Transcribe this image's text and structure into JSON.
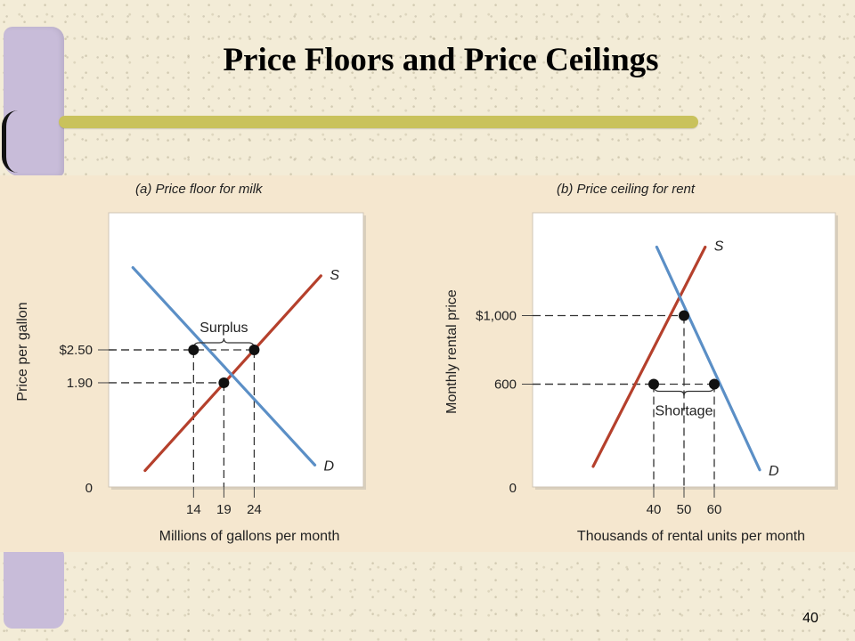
{
  "slide": {
    "title": "Price Floors and Price Ceilings",
    "page_number": "40"
  },
  "colors": {
    "background": "#f3ecd7",
    "figure_background": "#f5e7cf",
    "plot_background": "#ffffff",
    "accent_bar": "#c9c25c",
    "sidebar": "#c8bcd9",
    "supply_line": "#b5402c",
    "demand_line": "#5b8fc6"
  },
  "chart_data": [
    {
      "type": "line",
      "title": "(a) Price floor for milk",
      "xlabel": "Millions of gallons per month",
      "ylabel": "Price per gallon",
      "xlim": [
        0,
        42
      ],
      "ylim": [
        0,
        5
      ],
      "grid": false,
      "x_ticks": [
        {
          "value": 14,
          "label": "14"
        },
        {
          "value": 19,
          "label": "19"
        },
        {
          "value": 24,
          "label": "24"
        }
      ],
      "y_ticks": [
        {
          "value": 2.5,
          "label": "$2.50"
        },
        {
          "value": 1.9,
          "label": "1.90"
        },
        {
          "value": 0,
          "label": "0"
        }
      ],
      "series": [
        {
          "name": "S",
          "role": "supply",
          "x": [
            6,
            35
          ],
          "y": [
            0.3,
            3.85
          ]
        },
        {
          "name": "D",
          "role": "demand",
          "x": [
            4,
            34
          ],
          "y": [
            4.0,
            0.4
          ]
        }
      ],
      "points": [
        {
          "x": 14,
          "y": 2.5
        },
        {
          "x": 24,
          "y": 2.5
        },
        {
          "x": 19,
          "y": 1.9
        }
      ],
      "annotations": [
        {
          "type": "gap",
          "label": "Surplus",
          "x": [
            14,
            24
          ],
          "y": 2.5
        }
      ]
    },
    {
      "type": "line",
      "title": "(b) Price ceiling for rent",
      "xlabel": "Thousands of rental units per month",
      "ylabel": "Monthly rental price",
      "xlim": [
        0,
        100
      ],
      "ylim": [
        0,
        1600
      ],
      "grid": false,
      "x_ticks": [
        {
          "value": 40,
          "label": "40"
        },
        {
          "value": 50,
          "label": "50"
        },
        {
          "value": 60,
          "label": "60"
        }
      ],
      "y_ticks": [
        {
          "value": 1000,
          "label": "$1,000"
        },
        {
          "value": 600,
          "label": "600"
        },
        {
          "value": 0,
          "label": "0"
        }
      ],
      "series": [
        {
          "name": "S",
          "role": "supply",
          "x": [
            20,
            57
          ],
          "y": [
            120,
            1400
          ]
        },
        {
          "name": "D",
          "role": "demand",
          "x": [
            41,
            75
          ],
          "y": [
            1400,
            100
          ]
        }
      ],
      "points": [
        {
          "x": 50,
          "y": 1000
        },
        {
          "x": 40,
          "y": 600
        },
        {
          "x": 60,
          "y": 600
        }
      ],
      "annotations": [
        {
          "type": "gap",
          "label": "Shortage",
          "x": [
            40,
            60
          ],
          "y": 600
        }
      ]
    }
  ]
}
